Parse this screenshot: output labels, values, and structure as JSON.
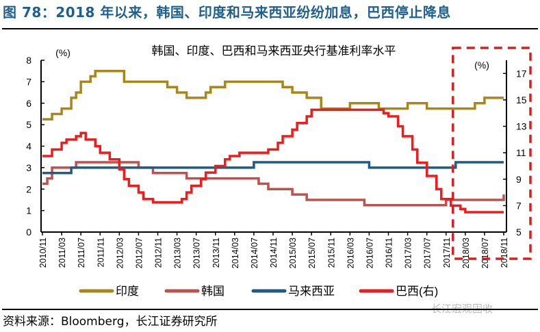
{
  "figure_title": "图 78：2018 年以来，韩国、印度和马来西亚纷纷加息，巴西停止降息",
  "source": "资料来源：Bloomberg，长江证券研究所",
  "watermark": "长江宏观固收",
  "chart_data": {
    "type": "line",
    "step": true,
    "title": "韩国、印度、巴西和马来西亚央行基准利率水平",
    "left_unit": "(%)",
    "right_unit": "(%)",
    "left_ylim": [
      0,
      8
    ],
    "left_yticks": [
      0,
      1,
      2,
      3,
      4,
      5,
      6,
      7,
      8
    ],
    "right_ylim": [
      5,
      18
    ],
    "right_yticks": [
      5,
      7,
      9,
      11,
      13,
      15,
      17
    ],
    "x_ticks": [
      "2010/11",
      "2011/03",
      "2011/07",
      "2011/11",
      "2012/03",
      "2012/07",
      "2012/11",
      "2013/03",
      "2013/07",
      "2013/11",
      "2014/03",
      "2014/07",
      "2014/11",
      "2015/03",
      "2015/07",
      "2015/11",
      "2016/03",
      "2016/07",
      "2016/11",
      "2017/03",
      "2017/07",
      "2017/11",
      "2018/03",
      "2018/07",
      "2018/11"
    ],
    "x_range": [
      "2010/11",
      "2018/11"
    ],
    "legend_position": "bottom",
    "highlight_box": {
      "from": "2018/01",
      "to": "2018/11",
      "color": "#d42020",
      "style": "dashed"
    },
    "series": [
      {
        "name": "印度",
        "axis": "left",
        "color": "#a8861a",
        "steps": [
          [
            "2010/11",
            5.25
          ],
          [
            "2011/01",
            5.5
          ],
          [
            "2011/03",
            5.75
          ],
          [
            "2011/05",
            6.25
          ],
          [
            "2011/06",
            6.5
          ],
          [
            "2011/07",
            7.0
          ],
          [
            "2011/09",
            7.25
          ],
          [
            "2011/10",
            7.5
          ],
          [
            "2012/04",
            7.0
          ],
          [
            "2013/01",
            6.75
          ],
          [
            "2013/03",
            6.5
          ],
          [
            "2013/05",
            6.25
          ],
          [
            "2013/09",
            6.5
          ],
          [
            "2013/10",
            6.75
          ],
          [
            "2014/01",
            7.0
          ],
          [
            "2015/01",
            6.75
          ],
          [
            "2015/03",
            6.5
          ],
          [
            "2015/06",
            6.25
          ],
          [
            "2015/09",
            5.75
          ],
          [
            "2016/03",
            6.0
          ],
          [
            "2016/09",
            5.75
          ],
          [
            "2017/03",
            6.0
          ],
          [
            "2017/07",
            5.75
          ],
          [
            "2018/05",
            6.0
          ],
          [
            "2018/07",
            6.25
          ]
        ]
      },
      {
        "name": "韩国",
        "axis": "left",
        "color": "#c0504d",
        "steps": [
          [
            "2010/11",
            2.25
          ],
          [
            "2010/12",
            2.5
          ],
          [
            "2011/01",
            3.0
          ],
          [
            "2011/06",
            3.25
          ],
          [
            "2012/07",
            3.0
          ],
          [
            "2012/10",
            2.75
          ],
          [
            "2013/05",
            2.5
          ],
          [
            "2014/08",
            2.25
          ],
          [
            "2014/10",
            2.0
          ],
          [
            "2015/03",
            1.75
          ],
          [
            "2015/06",
            1.5
          ],
          [
            "2016/06",
            1.25
          ],
          [
            "2017/11",
            1.5
          ],
          [
            "2018/11",
            1.75
          ]
        ]
      },
      {
        "name": "马来西亚",
        "axis": "left",
        "color": "#1f5c85",
        "steps": [
          [
            "2010/11",
            2.75
          ],
          [
            "2011/05",
            3.0
          ],
          [
            "2014/07",
            3.25
          ],
          [
            "2016/07",
            3.0
          ],
          [
            "2018/01",
            3.25
          ]
        ]
      },
      {
        "name": "巴西(右)",
        "axis": "right",
        "color": "#ee1c1c",
        "steps": [
          [
            "2010/11",
            10.75
          ],
          [
            "2011/01",
            11.25
          ],
          [
            "2011/03",
            11.75
          ],
          [
            "2011/04",
            12.0
          ],
          [
            "2011/06",
            12.25
          ],
          [
            "2011/07",
            12.5
          ],
          [
            "2011/08",
            12.0
          ],
          [
            "2011/10",
            11.5
          ],
          [
            "2011/11",
            11.0
          ],
          [
            "2012/01",
            10.5
          ],
          [
            "2012/03",
            9.75
          ],
          [
            "2012/04",
            9.0
          ],
          [
            "2012/05",
            8.5
          ],
          [
            "2012/07",
            8.0
          ],
          [
            "2012/08",
            7.5
          ],
          [
            "2012/10",
            7.25
          ],
          [
            "2013/04",
            7.5
          ],
          [
            "2013/05",
            8.0
          ],
          [
            "2013/06",
            8.5
          ],
          [
            "2013/08",
            9.0
          ],
          [
            "2013/09",
            9.5
          ],
          [
            "2013/11",
            10.0
          ],
          [
            "2014/01",
            10.5
          ],
          [
            "2014/02",
            10.75
          ],
          [
            "2014/04",
            11.0
          ],
          [
            "2014/10",
            11.25
          ],
          [
            "2014/12",
            11.75
          ],
          [
            "2015/01",
            12.25
          ],
          [
            "2015/03",
            12.75
          ],
          [
            "2015/04",
            13.25
          ],
          [
            "2015/06",
            13.75
          ],
          [
            "2015/07",
            14.25
          ],
          [
            "2016/10",
            14.0
          ],
          [
            "2016/11",
            13.75
          ],
          [
            "2017/01",
            13.0
          ],
          [
            "2017/02",
            12.25
          ],
          [
            "2017/04",
            11.25
          ],
          [
            "2017/05",
            10.25
          ],
          [
            "2017/07",
            9.25
          ],
          [
            "2017/09",
            8.25
          ],
          [
            "2017/10",
            7.5
          ],
          [
            "2017/12",
            7.0
          ],
          [
            "2018/02",
            6.75
          ],
          [
            "2018/03",
            6.5
          ]
        ]
      }
    ]
  }
}
